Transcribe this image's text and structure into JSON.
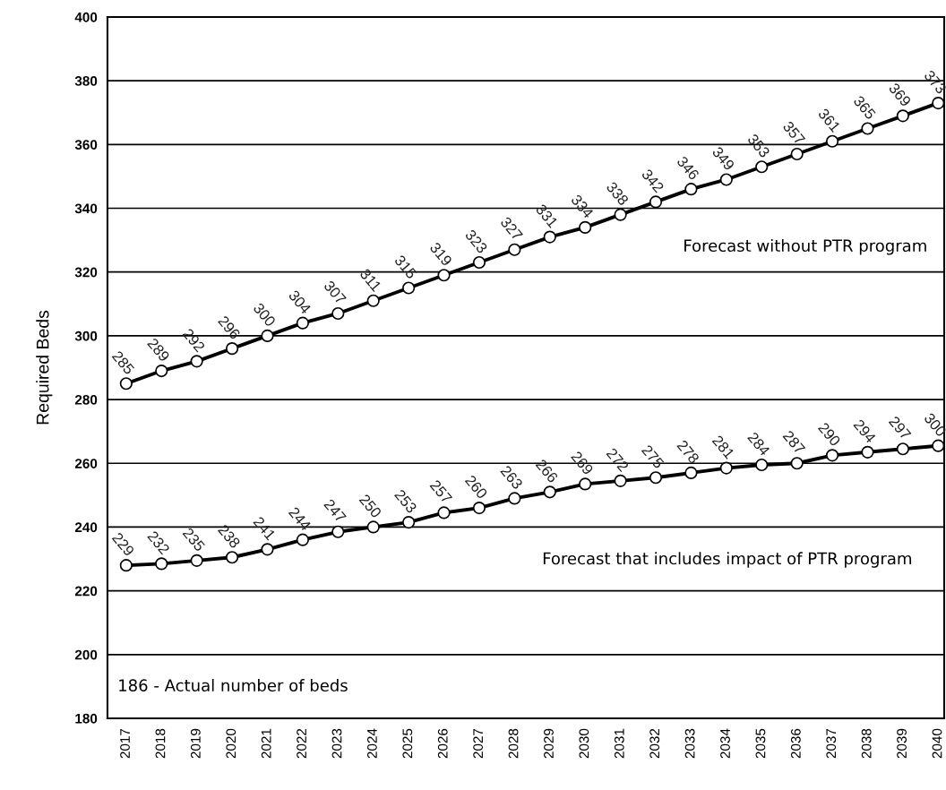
{
  "chart_data": {
    "type": "line",
    "ylabel": "Required Beds",
    "categories": [
      "2017",
      "2018",
      "2019",
      "2020",
      "2021",
      "2022",
      "2023",
      "2024",
      "2025",
      "2026",
      "2027",
      "2028",
      "2029",
      "2030",
      "2031",
      "2032",
      "2033",
      "2034",
      "2035",
      "2036",
      "2037",
      "2038",
      "2039",
      "2040"
    ],
    "series": [
      {
        "color": "#000000",
        "values": [
          285,
          289,
          292,
          296,
          300,
          304,
          307,
          311,
          315,
          319,
          323,
          327,
          331,
          334,
          338,
          342,
          346,
          349,
          353,
          357,
          361,
          365,
          369,
          373
        ],
        "value_labels": [
          "285",
          "289",
          "292",
          "296",
          "300",
          "304",
          "307",
          "311",
          "315",
          "319",
          "323",
          "327",
          "331",
          "334",
          "338",
          "342",
          "346",
          "349",
          "353",
          "357",
          "361",
          "365",
          "369",
          "373"
        ]
      },
      {
        "color": "#000000",
        "values": [
          228,
          228.5,
          229.5,
          230.5,
          233,
          236,
          238.5,
          240,
          241.5,
          244.5,
          246,
          249,
          251,
          253.5,
          254.5,
          255.5,
          257,
          258.5,
          259.5,
          260,
          262.5,
          263.5,
          264.5,
          265.5
        ]
      }
    ],
    "ylim": [
      180,
      400
    ],
    "yticks": [
      180,
      200,
      220,
      240,
      260,
      280,
      300,
      320,
      340,
      360,
      380,
      400
    ],
    "grid": "y",
    "marker": "circle",
    "line_style": "solid",
    "annotations": [
      "Forecast without PTR program",
      "Forecast that includes impact of PTR program",
      "186 - Actual number of beds",
      {
        "text": "229",
        "x": "2017",
        "y": 228
      },
      {
        "text": "232",
        "x": "2018",
        "y": 228.5
      },
      {
        "text": "235",
        "x": "2019",
        "y": 229.5
      },
      {
        "text": "238",
        "x": "2020",
        "y": 230.5
      },
      {
        "text": "241",
        "x": "2021",
        "y": 233
      },
      {
        "text": "244",
        "x": "2022",
        "y": 236
      },
      {
        "text": "247",
        "x": "2023",
        "y": 238.5
      },
      {
        "text": "250",
        "x": "2024",
        "y": 240
      },
      {
        "text": "253",
        "x": "2025",
        "y": 241.5
      },
      {
        "text": "257",
        "x": "2026",
        "y": 244.5
      },
      {
        "text": "260",
        "x": "2027",
        "y": 246
      },
      {
        "text": "263",
        "x": "2028",
        "y": 249
      },
      {
        "text": "266",
        "x": "2029",
        "y": 251
      },
      {
        "text": "269",
        "x": "2030",
        "y": 253.5
      },
      {
        "text": "272",
        "x": "2031",
        "y": 254.5
      },
      {
        "text": "275",
        "x": "2032",
        "y": 255.5
      },
      {
        "text": "278",
        "x": "2033",
        "y": 257
      },
      {
        "text": "281",
        "x": "2034",
        "y": 258.5
      },
      {
        "text": "284",
        "x": "2035",
        "y": 259.5
      },
      {
        "text": "287",
        "x": "2036",
        "y": 260
      },
      {
        "text": "290",
        "x": "2037",
        "y": 262.5
      },
      {
        "text": "294",
        "x": "2038",
        "y": 263.5
      },
      {
        "text": "297",
        "x": "2039",
        "y": 264.5
      },
      {
        "text": "300",
        "x": "2040",
        "y": 265.5
      }
    ]
  }
}
